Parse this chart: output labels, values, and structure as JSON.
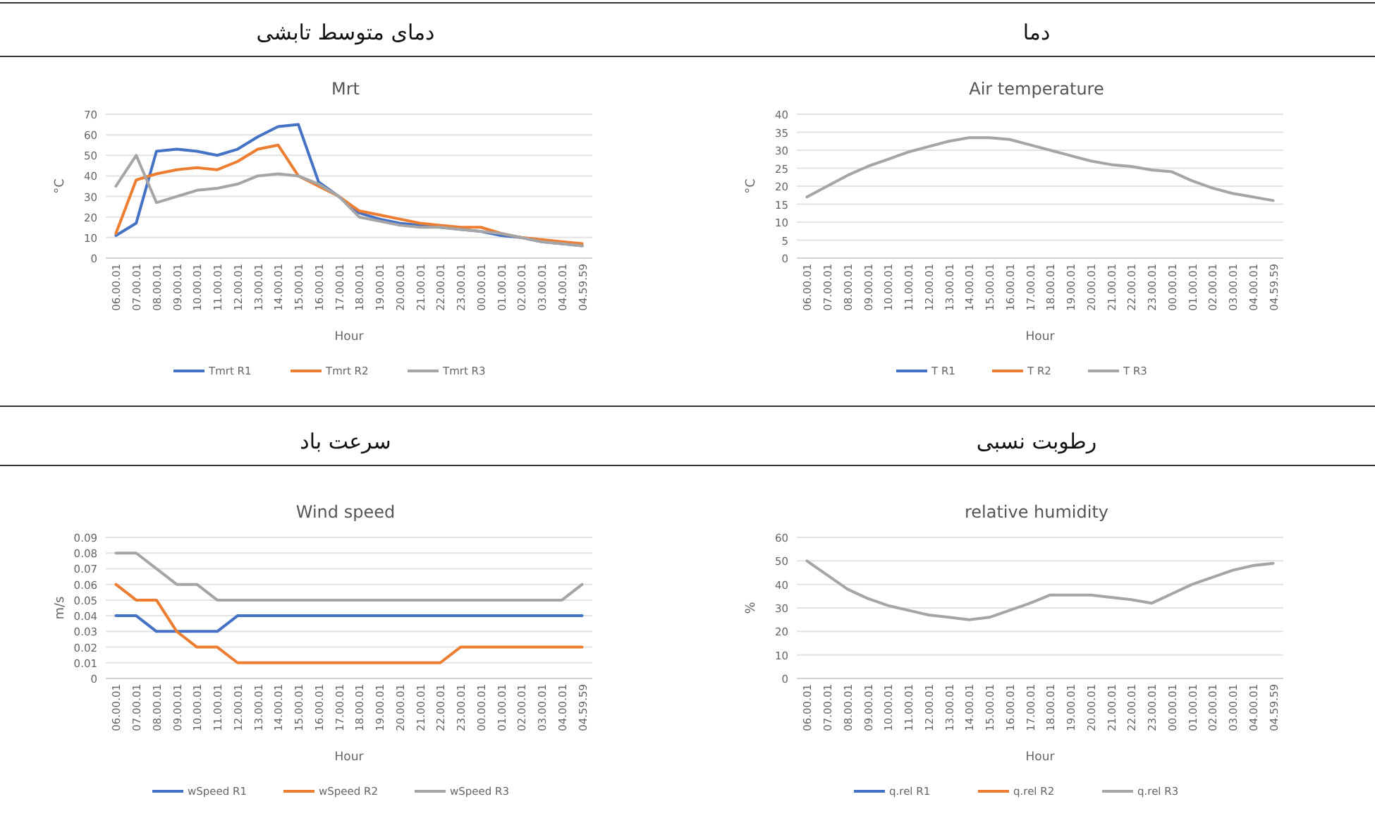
{
  "chart_data": [
    {
      "type": "line",
      "subtitle": "دمای متوسط تابشی",
      "title": "Mrt",
      "xlabel": "Hour",
      "ylabel": "°C",
      "categories": [
        "06.00.01",
        "07.00.01",
        "08.00.01",
        "09.00.01",
        "10.00.01",
        "11.00.01",
        "12.00.01",
        "13.00.01",
        "14.00.01",
        "15.00.01",
        "16.00.01",
        "17.00.01",
        "18.00.01",
        "19.00.01",
        "20.00.01",
        "21.00.01",
        "22.00.01",
        "23.00.01",
        "00.00.01",
        "01.00.01",
        "02.00.01",
        "03.00.01",
        "04.00.01",
        "04.59.59"
      ],
      "series": [
        {
          "name": "Tmrt R1",
          "color": "#4472c4",
          "values": [
            11,
            17,
            52,
            53,
            52,
            50,
            53,
            59,
            64,
            65,
            37,
            30,
            22,
            19,
            17,
            16,
            15,
            14,
            13,
            11,
            10,
            8,
            7,
            6
          ]
        },
        {
          "name": "Tmrt R2",
          "color": "#ed7d31",
          "values": [
            12,
            38,
            41,
            43,
            44,
            43,
            47,
            53,
            55,
            40,
            35,
            30,
            23,
            21,
            19,
            17,
            16,
            15,
            15,
            12,
            10,
            9,
            8,
            7
          ]
        },
        {
          "name": "Tmrt R3",
          "color": "#a5a5a5",
          "values": [
            35,
            50,
            27,
            30,
            33,
            34,
            36,
            40,
            41,
            40,
            36,
            30,
            20,
            18,
            16,
            15,
            15,
            14,
            13,
            12,
            10,
            8,
            7,
            6
          ]
        }
      ],
      "ylim": [
        0,
        70
      ],
      "yticks": [
        0,
        10,
        20,
        30,
        40,
        50,
        60,
        70
      ],
      "grid": "y",
      "legend": "bottom"
    },
    {
      "type": "line",
      "subtitle": "دما",
      "title": "Air temperature",
      "xlabel": "Hour",
      "ylabel": "°C",
      "categories": [
        "06.00.01",
        "07.00.01",
        "08.00.01",
        "09.00.01",
        "10.00.01",
        "11.00.01",
        "12.00.01",
        "13.00.01",
        "14.00.01",
        "15.00.01",
        "16.00.01",
        "17.00.01",
        "18.00.01",
        "19.00.01",
        "20.00.01",
        "21.00.01",
        "22.00.01",
        "23.00.01",
        "00.00.01",
        "01.00.01",
        "02.00.01",
        "03.00.01",
        "04.00.01",
        "04.59.59"
      ],
      "series": [
        {
          "name": "T R1",
          "color": "#4472c4",
          "values": [
            null,
            null,
            null,
            null,
            null,
            null,
            null,
            null,
            null,
            null,
            null,
            null,
            null,
            null,
            null,
            null,
            null,
            null,
            null,
            null,
            null,
            null,
            null,
            null
          ]
        },
        {
          "name": "T R2",
          "color": "#ed7d31",
          "values": [
            null,
            null,
            null,
            null,
            null,
            null,
            null,
            null,
            null,
            null,
            null,
            null,
            null,
            null,
            null,
            null,
            null,
            null,
            null,
            null,
            null,
            null,
            null,
            null
          ]
        },
        {
          "name": "T R3",
          "color": "#a5a5a5",
          "values": [
            17,
            20,
            23,
            25.5,
            27.5,
            29.5,
            31,
            32.5,
            33.5,
            33.5,
            33,
            31.5,
            30,
            28.5,
            27,
            26,
            25.5,
            24.5,
            24,
            21.5,
            19.5,
            18,
            17,
            16
          ]
        }
      ],
      "ylim": [
        0,
        40
      ],
      "yticks": [
        0,
        5,
        10,
        15,
        20,
        25,
        30,
        35,
        40
      ],
      "grid": "y",
      "legend": "bottom"
    },
    {
      "type": "line",
      "subtitle": "سرعت باد",
      "title": "Wind speed",
      "xlabel": "Hour",
      "ylabel": "m/s",
      "categories": [
        "06.00.01",
        "07.00.01",
        "08.00.01",
        "09.00.01",
        "10.00.01",
        "11.00.01",
        "12.00.01",
        "13.00.01",
        "14.00.01",
        "15.00.01",
        "16.00.01",
        "17.00.01",
        "18.00.01",
        "19.00.01",
        "20.00.01",
        "21.00.01",
        "22.00.01",
        "23.00.01",
        "00.00.01",
        "01.00.01",
        "02.00.01",
        "03.00.01",
        "04.00.01",
        "04.59.59"
      ],
      "series": [
        {
          "name": "wSpeed R1",
          "color": "#4472c4",
          "values": [
            0.04,
            0.04,
            0.03,
            0.03,
            0.03,
            0.03,
            0.04,
            0.04,
            0.04,
            0.04,
            0.04,
            0.04,
            0.04,
            0.04,
            0.04,
            0.04,
            0.04,
            0.04,
            0.04,
            0.04,
            0.04,
            0.04,
            0.04,
            0.04
          ]
        },
        {
          "name": "wSpeed R2",
          "color": "#ed7d31",
          "values": [
            0.06,
            0.05,
            0.05,
            0.03,
            0.02,
            0.02,
            0.01,
            0.01,
            0.01,
            0.01,
            0.01,
            0.01,
            0.01,
            0.01,
            0.01,
            0.01,
            0.01,
            0.02,
            0.02,
            0.02,
            0.02,
            0.02,
            0.02,
            0.02
          ]
        },
        {
          "name": "wSpeed R3",
          "color": "#a5a5a5",
          "values": [
            0.08,
            0.08,
            0.07,
            0.06,
            0.06,
            0.05,
            0.05,
            0.05,
            0.05,
            0.05,
            0.05,
            0.05,
            0.05,
            0.05,
            0.05,
            0.05,
            0.05,
            0.05,
            0.05,
            0.05,
            0.05,
            0.05,
            0.05,
            0.06
          ]
        }
      ],
      "ylim": [
        0,
        0.09
      ],
      "yticks": [
        0,
        0.01,
        0.02,
        0.03,
        0.04,
        0.05,
        0.06,
        0.07,
        0.08,
        0.09
      ],
      "grid": "y",
      "legend": "bottom"
    },
    {
      "type": "line",
      "subtitle": "رطوبت نسبی",
      "title": "relative humidity",
      "xlabel": "Hour",
      "ylabel": "%",
      "categories": [
        "06.00.01",
        "07.00.01",
        "08.00.01",
        "09.00.01",
        "10.00.01",
        "11.00.01",
        "12.00.01",
        "13.00.01",
        "14.00.01",
        "15.00.01",
        "16.00.01",
        "17.00.01",
        "18.00.01",
        "19.00.01",
        "20.00.01",
        "21.00.01",
        "22.00.01",
        "23.00.01",
        "00.00.01",
        "01.00.01",
        "02.00.01",
        "03.00.01",
        "04.00.01",
        "04.59.59"
      ],
      "series": [
        {
          "name": "q.rel R1",
          "color": "#4472c4",
          "values": [
            null,
            null,
            null,
            null,
            null,
            null,
            null,
            null,
            null,
            null,
            null,
            null,
            null,
            null,
            null,
            null,
            null,
            null,
            null,
            null,
            null,
            null,
            null,
            null
          ]
        },
        {
          "name": "q.rel R2",
          "color": "#ed7d31",
          "values": [
            null,
            null,
            null,
            null,
            null,
            null,
            null,
            null,
            null,
            null,
            null,
            null,
            null,
            null,
            null,
            null,
            null,
            null,
            null,
            null,
            null,
            null,
            null,
            null
          ]
        },
        {
          "name": "q.rel R3",
          "color": "#a5a5a5",
          "values": [
            50,
            44,
            38,
            34,
            31,
            29,
            27,
            26,
            25,
            26,
            29,
            32,
            35.5,
            35.5,
            35.5,
            34.5,
            33.5,
            32,
            36,
            40,
            43,
            46,
            48,
            49
          ]
        }
      ],
      "ylim": [
        0,
        60
      ],
      "yticks": [
        0,
        10,
        20,
        30,
        40,
        50,
        60
      ],
      "grid": "y",
      "legend": "bottom"
    }
  ]
}
